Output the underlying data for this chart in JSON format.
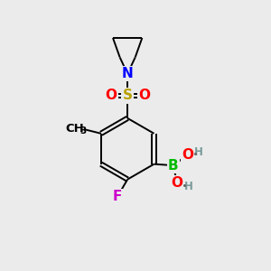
{
  "background_color": "#ebebeb",
  "bond_color": "#000000",
  "atom_colors": {
    "N": "#0000ff",
    "S": "#b8a000",
    "O": "#ff0000",
    "B": "#00bb00",
    "F": "#cc00cc",
    "C": "#000000",
    "H": "#7a9a9a"
  },
  "font_size_atoms": 11,
  "font_size_small": 8.5,
  "lw": 1.4
}
